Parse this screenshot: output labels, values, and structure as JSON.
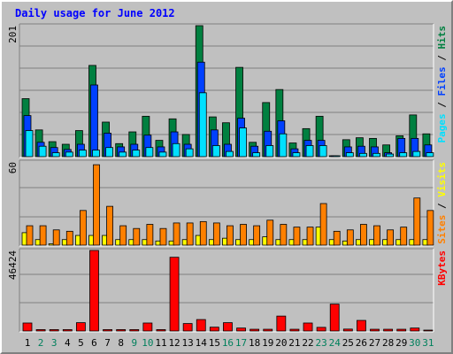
{
  "title": "Daily usage for June 2012",
  "colors": {
    "background": "#c0c0c0",
    "plot_background": "#c0c0c0",
    "grid": "#808080",
    "title": "#0000ff",
    "pages": "#00e0ff",
    "files": "#0040ff",
    "hits": "#008040",
    "visits": "#ffff00",
    "sites": "#ff8000",
    "kbytes": "#ff0000",
    "weekend_day": "#00805c",
    "weekday_day": "#000000"
  },
  "chart_data": [
    {
      "type": "bar",
      "name": "hits-files-pages",
      "legend": [
        {
          "label": "Pages",
          "color": "#00e0ff"
        },
        {
          "label": "Files",
          "color": "#0040ff"
        },
        {
          "label": "Hits",
          "color": "#008040"
        }
      ],
      "legend_separator": "/",
      "ylim": [
        0,
        201
      ],
      "ytick_label": "201",
      "categories": [
        "1",
        "2",
        "3",
        "4",
        "5",
        "6",
        "7",
        "8",
        "9",
        "10",
        "11",
        "12",
        "13",
        "14",
        "15",
        "16",
        "17",
        "18",
        "19",
        "20",
        "21",
        "22",
        "23",
        "24",
        "25",
        "26",
        "27",
        "28",
        "29",
        "30",
        "31"
      ],
      "series": [
        {
          "name": "Hits",
          "values": [
            89,
            41,
            23,
            19,
            40,
            140,
            53,
            20,
            38,
            62,
            25,
            58,
            34,
            201,
            61,
            52,
            137,
            22,
            83,
            103,
            21,
            43,
            62,
            0,
            26,
            29,
            28,
            18,
            32,
            64,
            35
          ]
        },
        {
          "name": "Files",
          "values": [
            63,
            22,
            14,
            11,
            19,
            110,
            36,
            15,
            19,
            33,
            15,
            38,
            19,
            145,
            41,
            19,
            59,
            16,
            39,
            55,
            12,
            25,
            25,
            0,
            15,
            16,
            15,
            6,
            28,
            28,
            18
          ]
        },
        {
          "name": "Pages",
          "values": [
            40,
            16,
            6,
            7,
            10,
            10,
            14,
            7,
            10,
            14,
            7,
            20,
            12,
            98,
            17,
            8,
            44,
            6,
            17,
            35,
            6,
            17,
            17,
            0,
            6,
            5,
            5,
            4,
            6,
            8,
            6
          ]
        }
      ]
    },
    {
      "type": "bar",
      "name": "visits-sites",
      "legend": [
        {
          "label": "Sites",
          "color": "#ff8000"
        },
        {
          "label": "Visits",
          "color": "#ffff00"
        }
      ],
      "legend_separator": "/",
      "ylim": [
        0,
        60
      ],
      "ytick_label": "60",
      "categories": [
        "1",
        "2",
        "3",
        "4",
        "5",
        "6",
        "7",
        "8",
        "9",
        "10",
        "11",
        "12",
        "13",
        "14",
        "15",
        "16",
        "17",
        "18",
        "19",
        "20",
        "21",
        "22",
        "23",
        "24",
        "25",
        "26",
        "27",
        "28",
        "29",
        "30",
        "31"
      ],
      "series": [
        {
          "name": "Sites",
          "values": [
            14,
            14,
            11,
            10,
            25,
            58,
            28,
            14,
            12,
            15,
            12,
            16,
            16,
            17,
            16,
            14,
            15,
            14,
            18,
            15,
            13,
            13,
            30,
            10,
            11,
            15,
            14,
            11,
            13,
            34,
            25
          ]
        },
        {
          "name": "Visits",
          "values": [
            9,
            4,
            1,
            4,
            7,
            7,
            7,
            4,
            4,
            4,
            3,
            3,
            4,
            7,
            4,
            5,
            4,
            4,
            6,
            4,
            4,
            4,
            13,
            4,
            3,
            4,
            4,
            4,
            4,
            4,
            4
          ]
        }
      ]
    },
    {
      "type": "bar",
      "name": "kbytes",
      "legend": [
        {
          "label": "KBytes",
          "color": "#ff0000"
        }
      ],
      "ylim": [
        0,
        46424
      ],
      "ytick_label": "46424",
      "categories": [
        "1",
        "2",
        "3",
        "4",
        "5",
        "6",
        "7",
        "8",
        "9",
        "10",
        "11",
        "12",
        "13",
        "14",
        "15",
        "16",
        "17",
        "18",
        "19",
        "20",
        "21",
        "22",
        "23",
        "24",
        "25",
        "26",
        "27",
        "28",
        "29",
        "30",
        "31"
      ],
      "series": [
        {
          "name": "KBytes",
          "values": [
            4600,
            800,
            800,
            800,
            4800,
            46424,
            800,
            800,
            800,
            4600,
            800,
            42500,
            4300,
            6600,
            2200,
            4800,
            1700,
            1000,
            1000,
            8600,
            1000,
            4600,
            2100,
            15500,
            1100,
            6100,
            1000,
            1000,
            1000,
            1700,
            0
          ]
        }
      ]
    }
  ],
  "day_labels": [
    "1",
    "2",
    "3",
    "4",
    "5",
    "6",
    "7",
    "8",
    "9",
    "10",
    "11",
    "12",
    "13",
    "14",
    "15",
    "16",
    "17",
    "18",
    "19",
    "20",
    "21",
    "22",
    "23",
    "24",
    "25",
    "26",
    "27",
    "28",
    "29",
    "30",
    "31"
  ],
  "weekend_days": [
    "2",
    "3",
    "9",
    "10",
    "16",
    "17",
    "23",
    "24",
    "30",
    "31"
  ]
}
